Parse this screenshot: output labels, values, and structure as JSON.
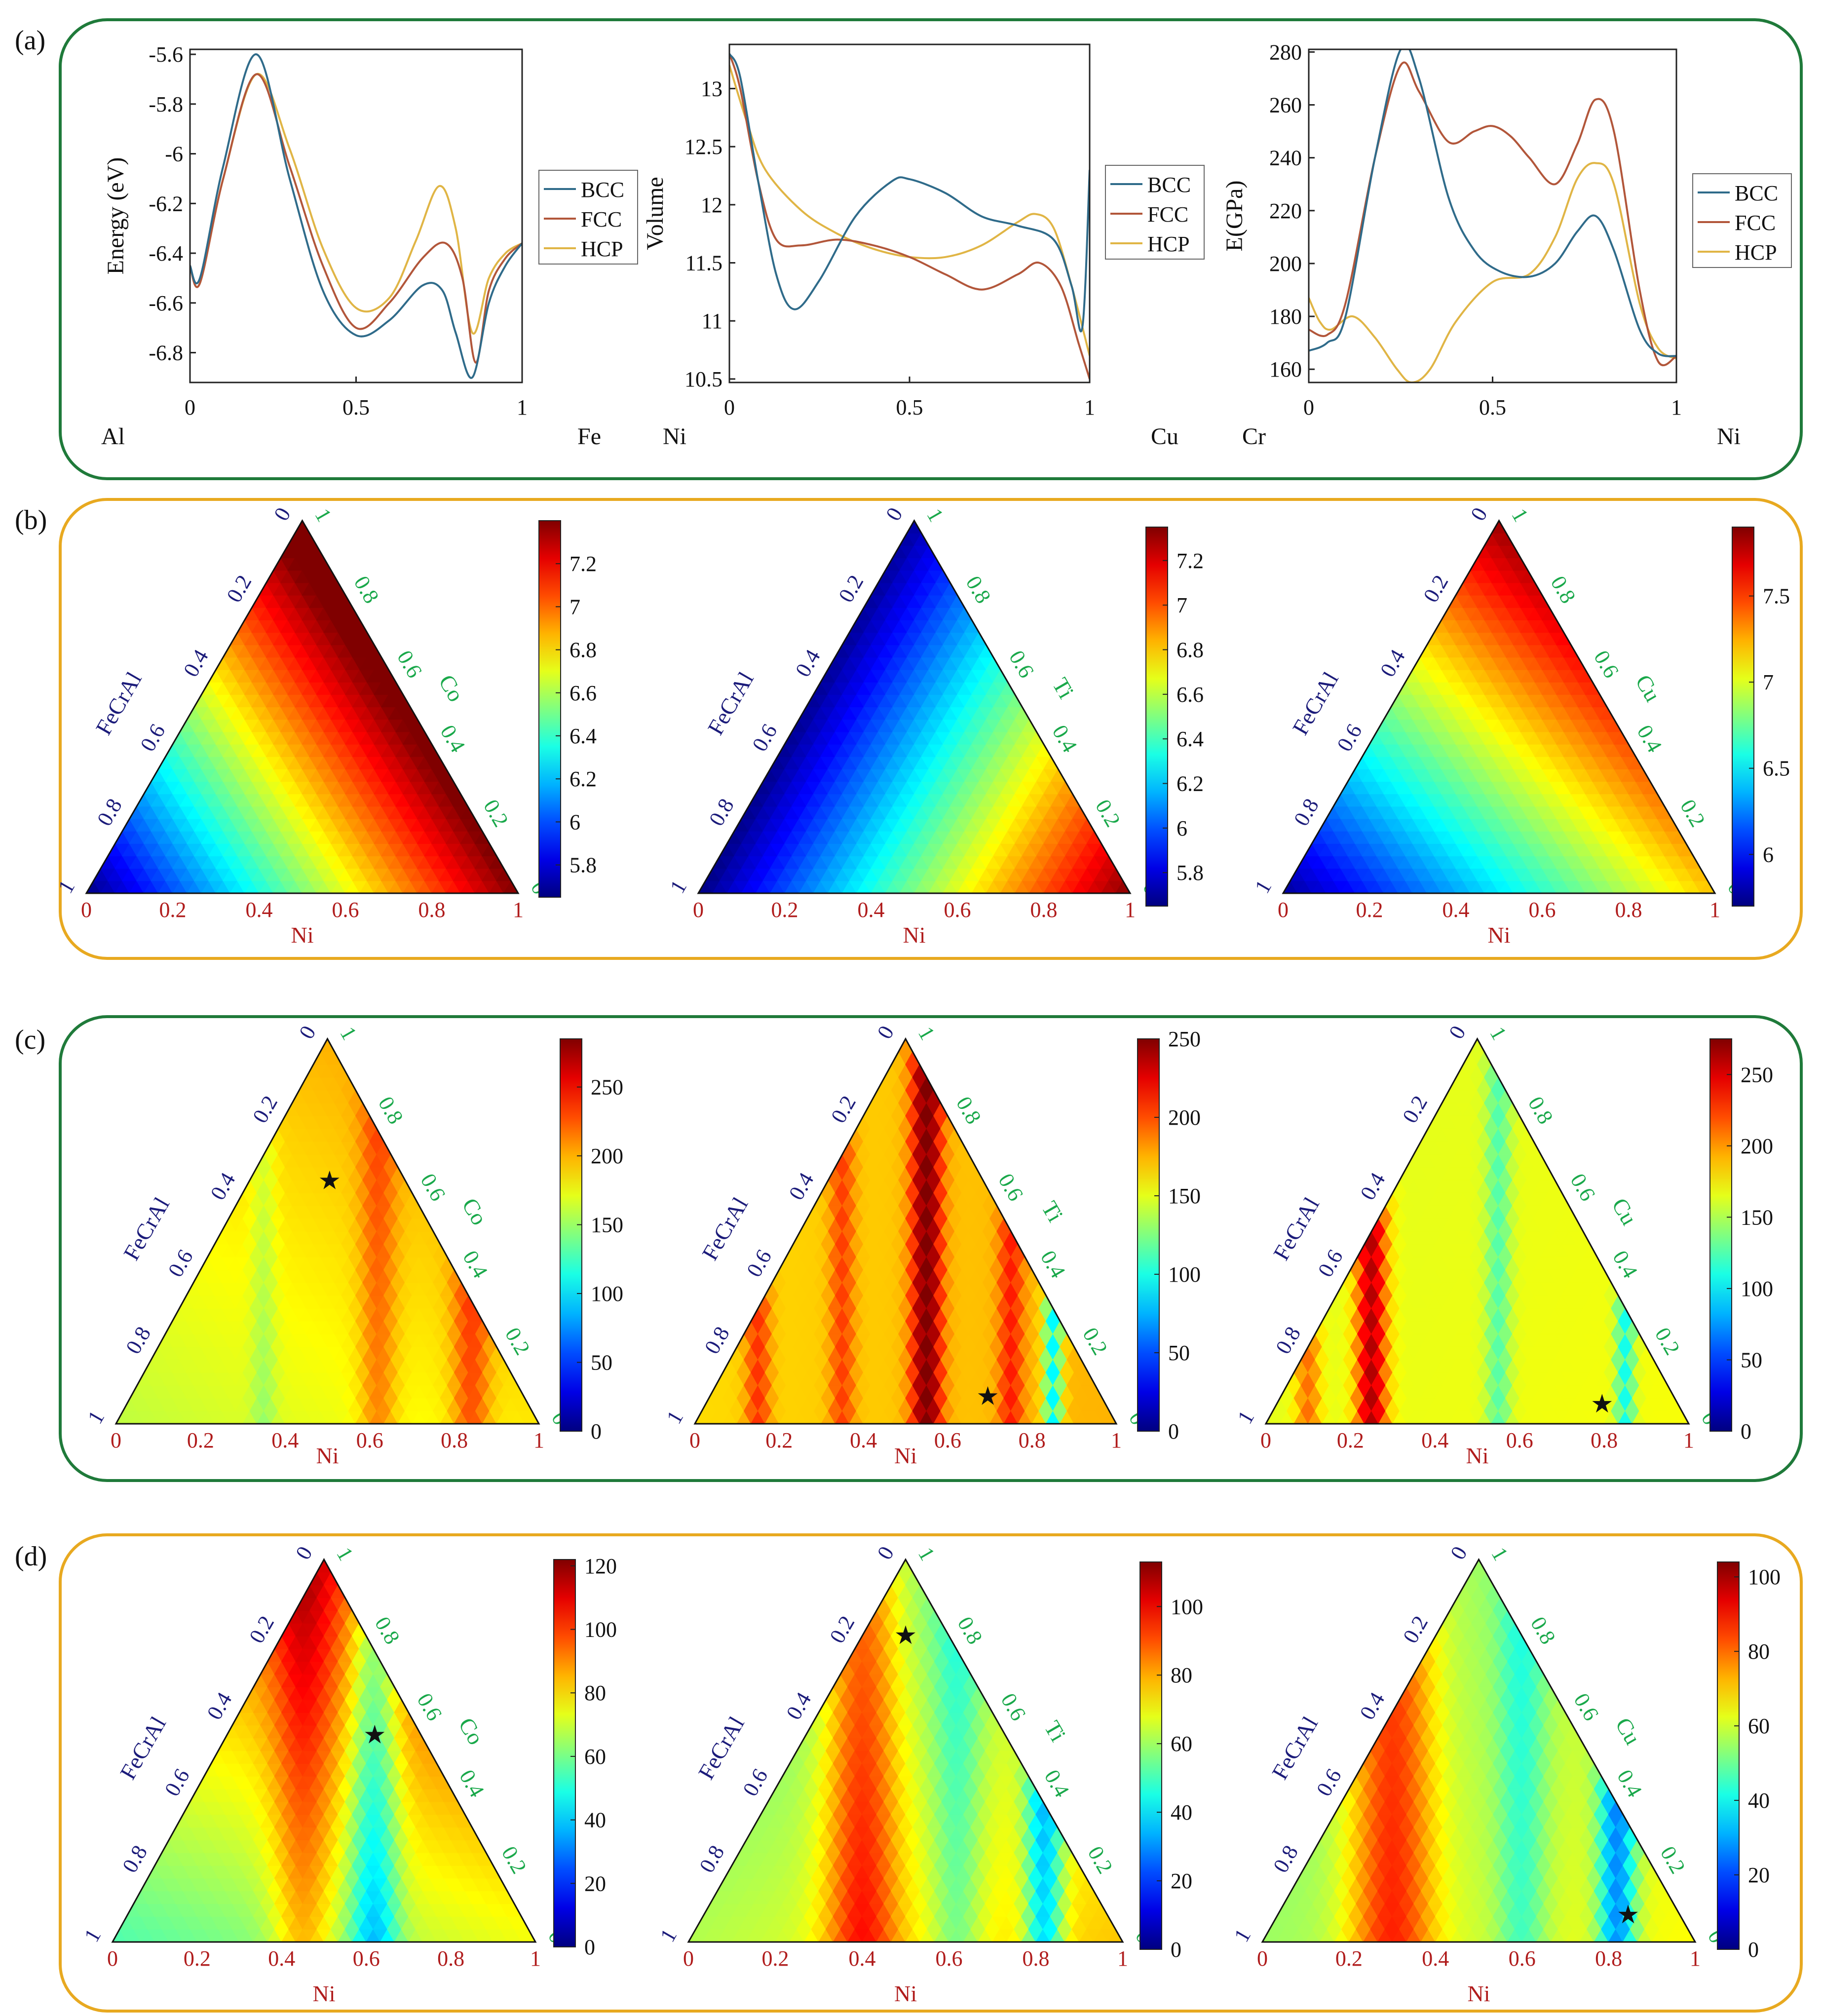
{
  "figure": {
    "panels": [
      {
        "label": "(a)",
        "frame_color": "#1f7a3a"
      },
      {
        "label": "(b)",
        "frame_color": "#e8a920"
      },
      {
        "label": "(c)",
        "frame_color": "#1f7a3a"
      },
      {
        "label": "(d)",
        "frame_color": "#e8a920"
      }
    ]
  },
  "colors": {
    "bcc": "#2f6b8a",
    "fcc": "#b2563a",
    "hcp": "#e0b545",
    "left_axis_text": "#1b1b7a",
    "right_axis_text": "#19a84a",
    "bottom_axis_text": "#b01c1c",
    "black": "#111111"
  },
  "chart_data": [
    {
      "id": "a1",
      "type": "line",
      "xlabel": "",
      "ylabel": "Energy (eV)",
      "xlim": [
        0,
        1
      ],
      "ylim": [
        -6.92,
        -5.58
      ],
      "xticks": [
        "0",
        "0.5",
        "1"
      ],
      "xtick_values": [
        0,
        0.5,
        1
      ],
      "yticks": [
        "-5.6",
        "-5.8",
        "-6",
        "-6.2",
        "-6.4",
        "-6.6",
        "-6.8"
      ],
      "ytick_values": [
        -5.6,
        -5.8,
        -6.0,
        -6.2,
        -6.4,
        -6.6,
        -6.8
      ],
      "left_element": "Al",
      "right_element": "Fe",
      "legend": [
        "BCC",
        "FCC",
        "HCP"
      ],
      "series": [
        {
          "name": "BCC",
          "x": [
            0,
            0.03,
            0.1,
            0.2,
            0.3,
            0.4,
            0.5,
            0.6,
            0.7,
            0.76,
            0.8,
            0.85,
            0.9,
            0.95,
            1
          ],
          "values": [
            -6.45,
            -6.5,
            -6.05,
            -5.6,
            -6.1,
            -6.55,
            -6.73,
            -6.67,
            -6.53,
            -6.55,
            -6.72,
            -6.9,
            -6.6,
            -6.45,
            -6.36
          ]
        },
        {
          "name": "FCC",
          "x": [
            0,
            0.03,
            0.1,
            0.2,
            0.3,
            0.4,
            0.5,
            0.6,
            0.7,
            0.77,
            0.82,
            0.86,
            0.9,
            0.95,
            1
          ],
          "values": [
            -6.45,
            -6.52,
            -6.1,
            -5.68,
            -6.05,
            -6.45,
            -6.7,
            -6.6,
            -6.42,
            -6.36,
            -6.5,
            -6.84,
            -6.55,
            -6.42,
            -6.36
          ]
        },
        {
          "name": "HCP",
          "x": [
            0,
            0.03,
            0.1,
            0.2,
            0.3,
            0.4,
            0.5,
            0.6,
            0.68,
            0.75,
            0.8,
            0.85,
            0.9,
            0.95,
            1
          ],
          "values": [
            -6.45,
            -6.52,
            -6.1,
            -5.68,
            -5.98,
            -6.38,
            -6.62,
            -6.58,
            -6.35,
            -6.13,
            -6.3,
            -6.72,
            -6.5,
            -6.4,
            -6.36
          ]
        }
      ]
    },
    {
      "id": "a2",
      "type": "line",
      "xlabel": "",
      "ylabel": "Volume",
      "xlim": [
        0,
        1
      ],
      "ylim": [
        10.47,
        13.38
      ],
      "xticks": [
        "0",
        "0.5",
        "1"
      ],
      "xtick_values": [
        0,
        0.5,
        1
      ],
      "yticks": [
        "13",
        "12.5",
        "12",
        "11.5",
        "11",
        "10.5"
      ],
      "ytick_values": [
        13,
        12.5,
        12,
        11.5,
        11,
        10.5
      ],
      "left_element": "Ni",
      "right_element": "Cu",
      "legend": [
        "BCC",
        "FCC",
        "HCP"
      ],
      "series": [
        {
          "name": "BCC",
          "x": [
            0,
            0.03,
            0.08,
            0.13,
            0.18,
            0.25,
            0.35,
            0.45,
            0.5,
            0.6,
            0.7,
            0.8,
            0.9,
            0.95,
            0.98,
            1
          ],
          "values": [
            13.3,
            13.1,
            12.2,
            11.4,
            11.1,
            11.35,
            11.9,
            12.2,
            12.22,
            12.1,
            11.9,
            11.82,
            11.7,
            11.3,
            10.95,
            12.3
          ]
        },
        {
          "name": "FCC",
          "x": [
            0,
            0.03,
            0.08,
            0.13,
            0.2,
            0.3,
            0.4,
            0.5,
            0.6,
            0.7,
            0.8,
            0.86,
            0.92,
            0.97,
            1
          ],
          "values": [
            13.3,
            13.0,
            12.2,
            11.7,
            11.65,
            11.7,
            11.65,
            11.55,
            11.4,
            11.27,
            11.4,
            11.5,
            11.3,
            10.8,
            10.5
          ]
        },
        {
          "name": "HCP",
          "x": [
            0,
            0.05,
            0.1,
            0.2,
            0.3,
            0.4,
            0.5,
            0.6,
            0.7,
            0.8,
            0.85,
            0.9,
            0.95,
            1
          ],
          "values": [
            13.2,
            12.7,
            12.3,
            11.95,
            11.75,
            11.62,
            11.55,
            11.55,
            11.65,
            11.85,
            11.92,
            11.8,
            11.3,
            10.7
          ]
        }
      ]
    },
    {
      "id": "a3",
      "type": "line",
      "xlabel": "",
      "ylabel": "E(GPa)",
      "xlim": [
        0,
        1
      ],
      "ylim": [
        155,
        281
      ],
      "xticks": [
        "0",
        "0.5",
        "1"
      ],
      "xtick_values": [
        0,
        0.5,
        1
      ],
      "yticks": [
        "280",
        "260",
        "240",
        "220",
        "200",
        "180",
        "160"
      ],
      "ytick_values": [
        280,
        260,
        240,
        220,
        200,
        180,
        160
      ],
      "left_element": "Cr",
      "right_element": "Ni",
      "legend": [
        "BCC",
        "FCC",
        "HCP"
      ],
      "series": [
        {
          "name": "BCC",
          "x": [
            0,
            0.05,
            0.1,
            0.18,
            0.25,
            0.3,
            0.38,
            0.45,
            0.52,
            0.6,
            0.67,
            0.73,
            0.78,
            0.83,
            0.9,
            0.95,
            1
          ],
          "values": [
            167,
            170,
            180,
            240,
            281,
            270,
            225,
            205,
            197,
            195,
            200,
            212,
            218,
            205,
            175,
            166,
            165
          ]
        },
        {
          "name": "FCC",
          "x": [
            0,
            0.05,
            0.1,
            0.18,
            0.25,
            0.3,
            0.38,
            0.45,
            0.5,
            0.55,
            0.6,
            0.67,
            0.73,
            0.78,
            0.83,
            0.9,
            0.95,
            1
          ],
          "values": [
            175,
            173,
            185,
            240,
            275,
            265,
            246,
            250,
            252,
            248,
            240,
            230,
            245,
            262,
            250,
            190,
            163,
            165
          ]
        },
        {
          "name": "HCP",
          "x": [
            0,
            0.03,
            0.06,
            0.12,
            0.18,
            0.24,
            0.28,
            0.33,
            0.4,
            0.5,
            0.6,
            0.67,
            0.73,
            0.78,
            0.83,
            0.9,
            0.95,
            1
          ],
          "values": [
            187,
            178,
            175,
            180,
            172,
            160,
            155,
            160,
            178,
            193,
            196,
            210,
            232,
            238,
            230,
            185,
            168,
            164
          ]
        }
      ]
    },
    {
      "id": "b1",
      "type": "heatmap",
      "title": "",
      "bottom_label": "Ni",
      "left_label": "FeCrAl",
      "right_label": "Co",
      "colorbar": {
        "min": 5.65,
        "max": 7.4,
        "ticks": [
          5.8,
          6,
          6.2,
          6.4,
          6.6,
          6.8,
          7,
          7.2
        ],
        "labels": [
          "5.8",
          "6",
          "6.2",
          "6.4",
          "6.6",
          "6.8",
          "7",
          "7.2"
        ]
      },
      "field": {
        "base": 5.65,
        "a": 1.75,
        "b": 1.9,
        "bands": []
      },
      "stars": []
    },
    {
      "id": "b2",
      "type": "heatmap",
      "title": "",
      "bottom_label": "Ni",
      "left_label": "FeCrAl",
      "right_label": "Ti",
      "colorbar": {
        "min": 5.65,
        "max": 7.35,
        "ticks": [
          5.8,
          6,
          6.2,
          6.4,
          6.6,
          6.8,
          7,
          7.2
        ],
        "labels": [
          "5.8",
          "6",
          "6.2",
          "6.4",
          "6.6",
          "6.8",
          "7",
          "7.2"
        ]
      },
      "field": {
        "base": 5.65,
        "a": 1.7,
        "b": 0.05,
        "bands": []
      },
      "stars": []
    },
    {
      "id": "b3",
      "type": "heatmap",
      "title": "",
      "bottom_label": "Ni",
      "left_label": "FeCrAl",
      "right_label": "Cu",
      "colorbar": {
        "min": 5.7,
        "max": 7.9,
        "ticks": [
          6,
          6.5,
          7,
          7.5
        ],
        "labels": [
          "6",
          "6.5",
          "7",
          "7.5"
        ]
      },
      "field": {
        "base": 5.75,
        "a": 1.45,
        "b": 2.1,
        "bands": []
      },
      "stars": []
    },
    {
      "id": "c1",
      "type": "heatmap",
      "title": "",
      "bottom_label": "Ni",
      "left_label": "FeCrAl",
      "right_label": "Co",
      "colorbar": {
        "min": 0,
        "max": 285,
        "ticks": [
          0,
          50,
          100,
          150,
          200,
          250
        ],
        "labels": [
          "0",
          "50",
          "100",
          "150",
          "200",
          "250"
        ]
      },
      "field": {
        "base": 160,
        "a": 25,
        "b": 40,
        "bands": [
          [
            0.84,
            0.03,
            45
          ],
          [
            0.62,
            0.03,
            35
          ],
          [
            0.35,
            0.02,
            -20
          ]
        ]
      },
      "stars": [
        [
          0.19,
          0.63
        ]
      ]
    },
    {
      "id": "c2",
      "type": "heatmap",
      "title": "",
      "bottom_label": "Ni",
      "left_label": "FeCrAl",
      "right_label": "Ti",
      "colorbar": {
        "min": 0,
        "max": 250,
        "ticks": [
          0,
          50,
          100,
          150,
          200,
          250
        ],
        "labels": [
          "0",
          "50",
          "100",
          "150",
          "200",
          "250"
        ]
      },
      "field": {
        "base": 165,
        "a": 10,
        "b": 5,
        "bands": [
          [
            0.55,
            0.025,
            85
          ],
          [
            0.75,
            0.02,
            40
          ],
          [
            0.35,
            0.02,
            35
          ],
          [
            0.15,
            0.02,
            40
          ],
          [
            0.85,
            0.015,
            -80
          ]
        ]
      },
      "stars": [
        [
          0.66,
          0.07
        ]
      ]
    },
    {
      "id": "c3",
      "type": "heatmap",
      "title": "",
      "bottom_label": "Ni",
      "left_label": "FeCrAl",
      "right_label": "Cu",
      "colorbar": {
        "min": 0,
        "max": 275,
        "ticks": [
          0,
          50,
          100,
          150,
          200,
          250
        ],
        "labels": [
          "0",
          "50",
          "100",
          "150",
          "200",
          "250"
        ]
      },
      "field": {
        "base": 165,
        "a": 5,
        "b": 0,
        "bands": [
          [
            0.25,
            0.025,
            95
          ],
          [
            0.1,
            0.02,
            45
          ],
          [
            0.55,
            0.02,
            -40
          ],
          [
            0.85,
            0.015,
            -60
          ]
        ]
      },
      "stars": [
        [
          0.77,
          0.05
        ]
      ]
    },
    {
      "id": "d1",
      "type": "heatmap",
      "title": "",
      "bottom_label": "Ni",
      "left_label": "FeCrAl",
      "right_label": "Co",
      "colorbar": {
        "min": 0,
        "max": 122,
        "ticks": [
          0,
          20,
          40,
          60,
          80,
          100,
          120
        ],
        "labels": [
          "0",
          "20",
          "40",
          "60",
          "80",
          "100",
          "120"
        ]
      },
      "field": {
        "base": 55,
        "a": 20,
        "b": 45,
        "bands": [
          [
            0.62,
            0.04,
            -30
          ],
          [
            0.45,
            0.05,
            20
          ]
        ]
      },
      "stars": [
        [
          0.35,
          0.54
        ]
      ]
    },
    {
      "id": "d2",
      "type": "heatmap",
      "title": "",
      "bottom_label": "Ni",
      "left_label": "FeCrAl",
      "right_label": "Ti",
      "colorbar": {
        "min": 0,
        "max": 113,
        "ticks": [
          0,
          20,
          40,
          60,
          80,
          100
        ],
        "labels": [
          "0",
          "20",
          "40",
          "60",
          "80",
          "100"
        ]
      },
      "field": {
        "base": 62,
        "a": 15,
        "b": -5,
        "bands": [
          [
            0.4,
            0.06,
            30
          ],
          [
            0.82,
            0.03,
            -35
          ],
          [
            0.62,
            0.04,
            -15
          ]
        ]
      },
      "stars": [
        [
          0.1,
          0.8
        ]
      ]
    },
    {
      "id": "d3",
      "type": "heatmap",
      "title": "",
      "bottom_label": "Ni",
      "left_label": "FeCrAl",
      "right_label": "Cu",
      "colorbar": {
        "min": 0,
        "max": 104,
        "ticks": [
          0,
          20,
          40,
          60,
          80,
          100
        ],
        "labels": [
          "0",
          "20",
          "40",
          "60",
          "80",
          "100"
        ]
      },
      "field": {
        "base": 55,
        "a": 10,
        "b": 0,
        "bands": [
          [
            0.3,
            0.07,
            30
          ],
          [
            0.82,
            0.03,
            -35
          ],
          [
            0.6,
            0.04,
            -15
          ]
        ]
      },
      "stars": [
        [
          0.81,
          0.07
        ]
      ]
    }
  ],
  "ternary_ticks": {
    "bottom": [
      "0",
      "0.2",
      "0.4",
      "0.6",
      "0.8",
      "1"
    ],
    "left": [
      "1",
      "0.8",
      "0.6",
      "0.4",
      "0.2",
      "0"
    ],
    "right": [
      "0",
      "0.2",
      "0.4",
      "0.6",
      "0.8",
      "1"
    ]
  }
}
